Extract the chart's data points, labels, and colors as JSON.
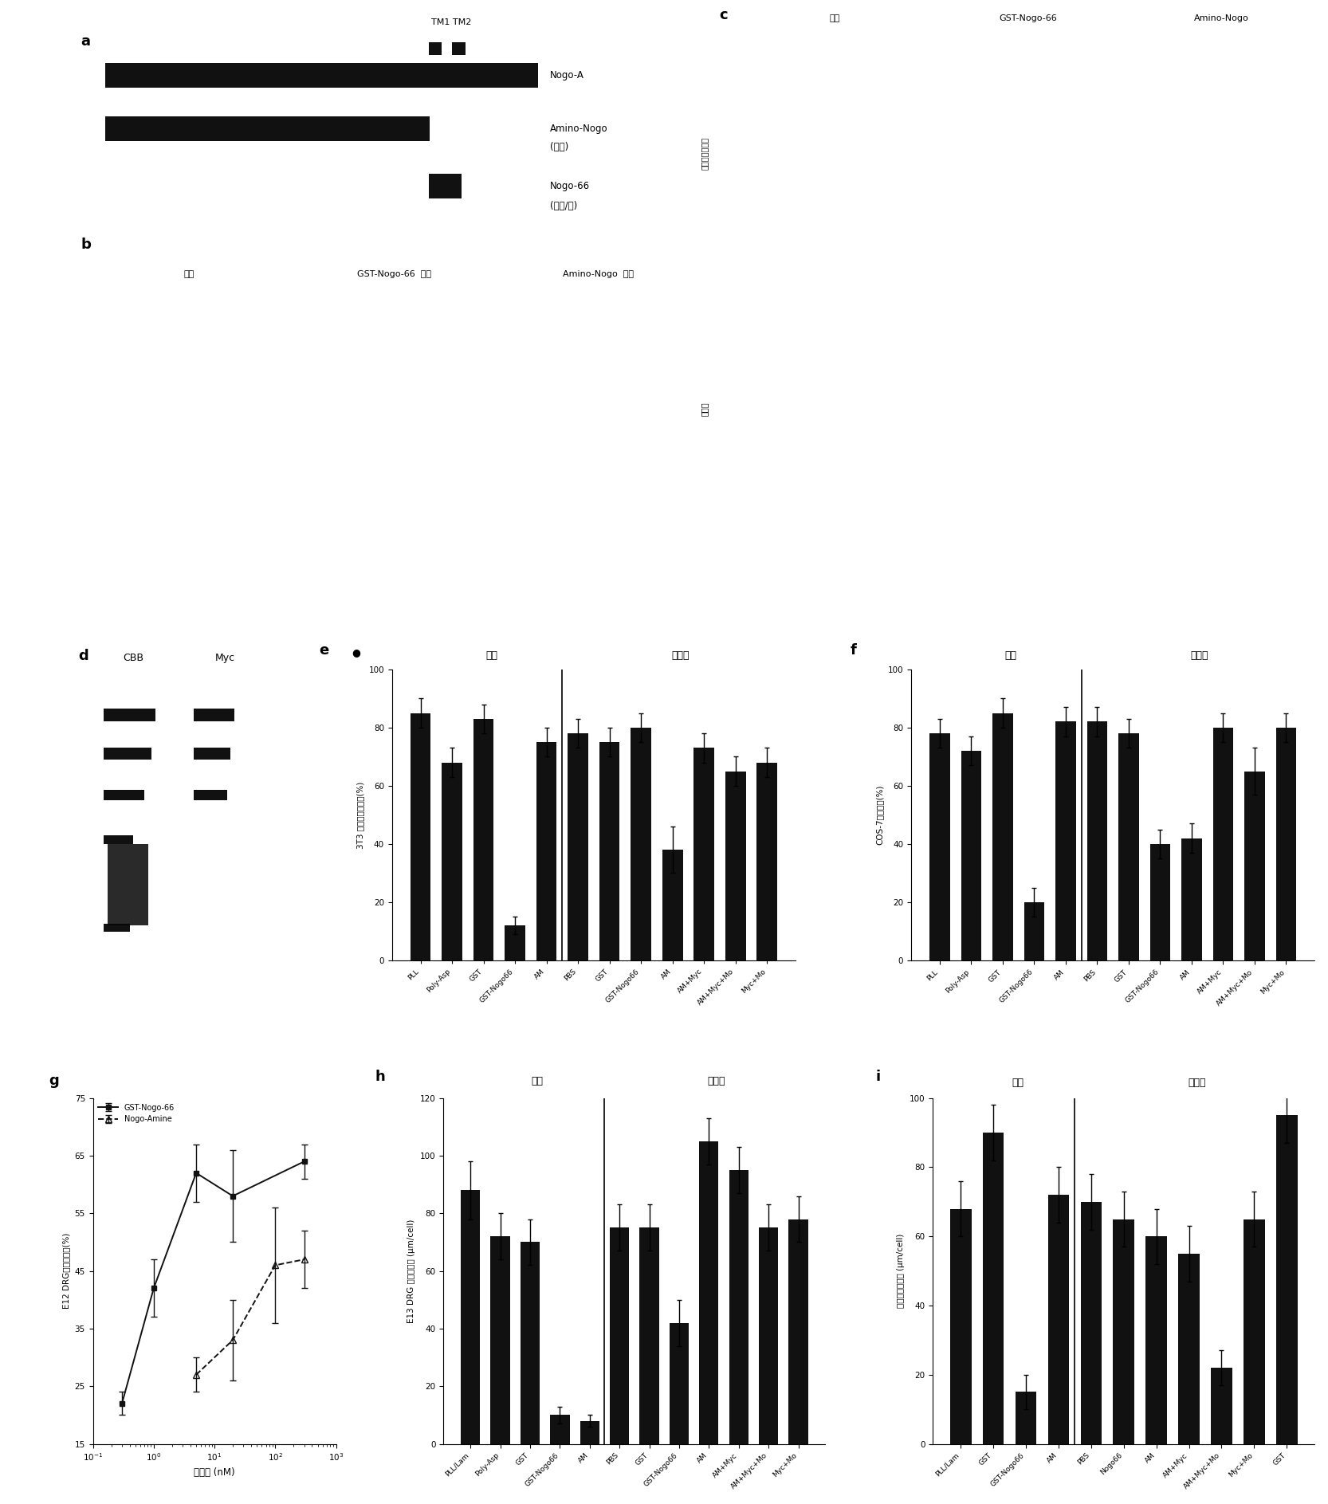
{
  "panel_e": {
    "title_surface": "表面",
    "title_soluble": "可溶的",
    "ylabel": "3T3 成纤维细胞扩散(%)",
    "categories": [
      "PLL",
      "Poly-Asp",
      "GST",
      "GST-Nogo66",
      "AM",
      "PBS",
      "GST",
      "GST-Nogo66",
      "AM",
      "AM+Myc",
      "AM+Myc+Mo",
      "Myc+Mo"
    ],
    "values": [
      85,
      68,
      83,
      12,
      75,
      78,
      75,
      80,
      38,
      73,
      65,
      68
    ],
    "errors": [
      5,
      5,
      5,
      3,
      5,
      5,
      5,
      5,
      8,
      5,
      5,
      5
    ],
    "surface_count": 5,
    "ylim": [
      0,
      100
    ],
    "yticks": [
      0,
      20,
      40,
      60,
      80,
      100
    ]
  },
  "panel_f": {
    "title_surface": "表面",
    "title_soluble": "可溶的",
    "ylabel": "COS-7细胞扩散(%)",
    "categories": [
      "PLL",
      "Poly-Asp",
      "GST",
      "GST-Nogo66",
      "AM",
      "PBS",
      "GST",
      "GST-Nogo66",
      "AM",
      "AM+Myc",
      "AM+Myc+Mo",
      "Myc+Mo"
    ],
    "values": [
      78,
      72,
      85,
      20,
      82,
      82,
      78,
      40,
      42,
      80,
      65,
      80
    ],
    "errors": [
      5,
      5,
      5,
      5,
      5,
      5,
      5,
      5,
      5,
      5,
      8,
      5
    ],
    "surface_count": 5,
    "ylim": [
      0,
      100
    ],
    "yticks": [
      0,
      20,
      40,
      60,
      80,
      100
    ]
  },
  "panel_g": {
    "ylabel": "E12 DRG生长锥破坏(%)",
    "xlabel": "蛋白质 (nM)",
    "yticks": [
      15,
      25,
      35,
      45,
      55,
      65,
      75
    ],
    "ylim": [
      15,
      75
    ],
    "xlim_log": [
      0.1,
      1000
    ],
    "series": [
      {
        "label": "GST-Nogo-66",
        "x": [
          0.3,
          1,
          5,
          20,
          300
        ],
        "y": [
          22,
          42,
          62,
          58,
          64
        ],
        "errors": [
          2,
          5,
          5,
          8,
          3
        ],
        "linestyle": "-"
      },
      {
        "label": "Nogo-Amine",
        "x": [
          5,
          20,
          100,
          300
        ],
        "y": [
          27,
          33,
          46,
          47
        ],
        "errors": [
          3,
          7,
          10,
          5
        ],
        "linestyle": "--"
      }
    ]
  },
  "panel_h": {
    "title_surface": "表面",
    "title_soluble": "可溶的",
    "ylabel": "E13 DRG 神经突发育 (μm/cell)",
    "categories": [
      "PLL/Lam",
      "Poly-Asp",
      "GST",
      "GST-Nogo66",
      "AM",
      "PBS",
      "GST",
      "GST-Nogo66",
      "AM",
      "AM+Myc",
      "AM+Myc+Mo",
      "Myc+Mo"
    ],
    "values": [
      88,
      72,
      70,
      10,
      8,
      75,
      75,
      42,
      105,
      95,
      75,
      78
    ],
    "errors": [
      10,
      8,
      8,
      3,
      2,
      8,
      8,
      8,
      8,
      8,
      8,
      8
    ],
    "surface_count": 5,
    "ylim": [
      0,
      120
    ],
    "yticks": [
      0,
      20,
      40,
      60,
      80,
      100,
      120
    ]
  },
  "panel_i": {
    "title_surface": "表面",
    "title_soluble": "可溶的",
    "ylabel": "小脑神经突发育 (μm/cell)",
    "categories": [
      "PLL/Lam",
      "GST",
      "GST-Nogo66",
      "AM",
      "PBS",
      "Nogo66",
      "AM",
      "AM+Myc",
      "AM+Myc+Mo",
      "Myc+Mo",
      "GST"
    ],
    "values": [
      68,
      90,
      15,
      72,
      70,
      65,
      60,
      55,
      22,
      65,
      95
    ],
    "errors": [
      8,
      8,
      5,
      8,
      8,
      8,
      8,
      8,
      5,
      8,
      8
    ],
    "surface_count": 4,
    "ylim": [
      0,
      100
    ],
    "yticks": [
      0,
      20,
      40,
      60,
      80,
      100
    ]
  },
  "bg_color": "#ffffff",
  "bar_color": "#111111"
}
